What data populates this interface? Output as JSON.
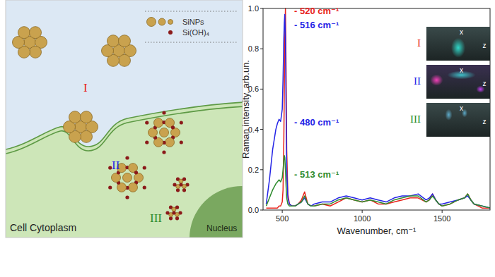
{
  "chart_data": {
    "type": "line",
    "x_label": "Wavenumber, cm⁻¹",
    "y_label": "Raman intensity, arb.un.",
    "x": [
      400,
      420,
      440,
      460,
      470,
      480,
      490,
      500,
      505,
      510,
      513,
      516,
      520,
      524,
      528,
      535,
      545,
      560,
      580,
      600,
      620,
      640,
      660,
      680,
      700,
      750,
      800,
      850,
      900,
      950,
      1000,
      1050,
      1100,
      1150,
      1200,
      1250,
      1300,
      1350,
      1400,
      1420,
      1440,
      1460,
      1480,
      1500,
      1550,
      1600,
      1640,
      1660,
      1680,
      1700,
      1750,
      1800
    ],
    "xlim": [
      380,
      1800
    ],
    "xticks": [
      500,
      1000,
      1500
    ],
    "ylim": [
      0,
      1
    ],
    "yticks": [
      {
        "value": 0,
        "label": "0.0"
      },
      {
        "value": 0.2,
        "label": "0.2"
      },
      {
        "value": 0.4,
        "label": "0.4"
      },
      {
        "value": 0.6,
        "label": "0.6"
      },
      {
        "value": 0.8,
        "label": "0.8"
      },
      {
        "value": 1,
        "label": "1.0"
      }
    ],
    "grid": false,
    "series": [
      {
        "color": "#e8241c",
        "values": [
          0.01,
          0.01,
          0.01,
          0.01,
          0.01,
          0.02,
          0.02,
          0.04,
          0.1,
          0.35,
          0.6,
          0.85,
          1.0,
          0.7,
          0.3,
          0.08,
          0.03,
          0.02,
          0.02,
          0.03,
          0.05,
          0.09,
          0.03,
          0.02,
          0.02,
          0.03,
          0.02,
          0.04,
          0.06,
          0.05,
          0.04,
          0.05,
          0.03,
          0.03,
          0.04,
          0.05,
          0.06,
          0.06,
          0.04,
          0.05,
          0.08,
          0.05,
          0.03,
          0.02,
          0.03,
          0.05,
          0.06,
          0.08,
          0.05,
          0.03,
          0.01,
          0.01
        ]
      },
      {
        "color": "#2424e6",
        "values": [
          0.03,
          0.15,
          0.3,
          0.4,
          0.43,
          0.45,
          0.44,
          0.5,
          0.65,
          0.85,
          0.93,
          0.97,
          0.85,
          0.5,
          0.2,
          0.06,
          0.03,
          0.02,
          0.02,
          0.03,
          0.04,
          0.06,
          0.03,
          0.02,
          0.03,
          0.04,
          0.04,
          0.06,
          0.07,
          0.06,
          0.05,
          0.06,
          0.05,
          0.04,
          0.06,
          0.07,
          0.07,
          0.08,
          0.05,
          0.06,
          0.08,
          0.05,
          0.03,
          0.03,
          0.04,
          0.05,
          0.06,
          0.07,
          0.05,
          0.03,
          0.02,
          0.01
        ]
      },
      {
        "color": "#2e8b2e",
        "values": [
          0.02,
          0.06,
          0.1,
          0.13,
          0.14,
          0.15,
          0.14,
          0.16,
          0.2,
          0.25,
          0.27,
          0.26,
          0.2,
          0.12,
          0.06,
          0.03,
          0.02,
          0.02,
          0.02,
          0.03,
          0.04,
          0.07,
          0.03,
          0.02,
          0.02,
          0.03,
          0.03,
          0.05,
          0.06,
          0.05,
          0.04,
          0.05,
          0.04,
          0.03,
          0.05,
          0.06,
          0.07,
          0.07,
          0.04,
          0.05,
          0.07,
          0.05,
          0.03,
          0.02,
          0.03,
          0.05,
          0.06,
          0.08,
          0.05,
          0.03,
          0.02,
          0.01
        ]
      }
    ],
    "annotations": [
      {
        "text": "- 520 cm⁻¹",
        "color": "#e8241c"
      },
      {
        "text": "- 516 cm⁻¹",
        "color": "#2424e6"
      },
      {
        "text": "- 480 cm⁻¹",
        "color": "#2424e6"
      },
      {
        "text": "- 513 cm⁻¹",
        "color": "#2e8b2e"
      }
    ]
  },
  "insets": [
    {
      "label": "I",
      "color": "#e8241c",
      "axis_x": "x",
      "axis_z": "z"
    },
    {
      "label": "II",
      "color": "#2424e6",
      "axis_x": "x",
      "axis_z": "z"
    },
    {
      "label": "III",
      "color": "#2e8b2e",
      "axis_x": "x",
      "axis_z": "z"
    }
  ],
  "diagram": {
    "legend": [
      {
        "label": "SiNPs"
      },
      {
        "label": "Si(OH)₄"
      }
    ],
    "stages": [
      {
        "label": "I",
        "color": "#e8241c"
      },
      {
        "label": "II",
        "color": "#2424e6"
      },
      {
        "label": "III",
        "color": "#2e8b2e"
      }
    ],
    "cytoplasm_label": "Cell Cytoplasm",
    "nucleus_label": "Nucleus"
  }
}
